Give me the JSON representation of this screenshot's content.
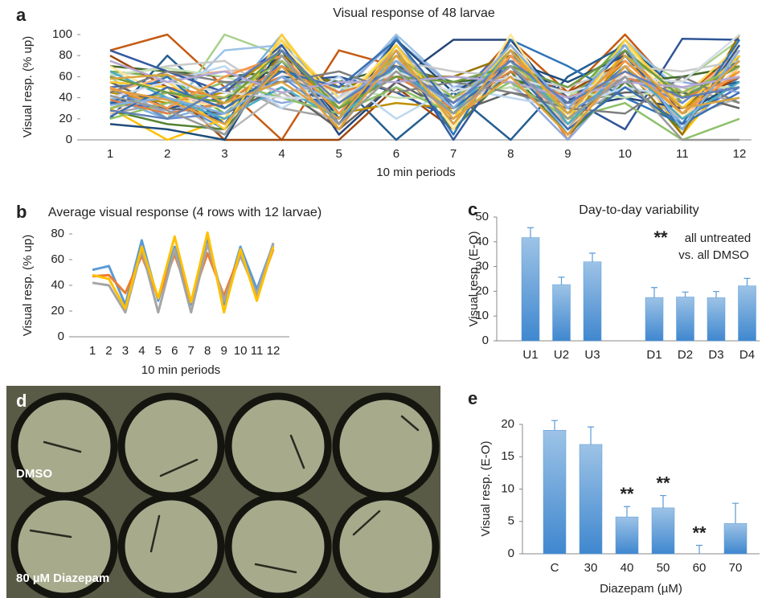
{
  "chart_data": [
    {
      "panel": "a",
      "type": "line",
      "title": "Visual response of 48 larvae",
      "x_label": "10 min periods",
      "y_label": "Visual resp. (% up)",
      "categories": [
        "1",
        "2",
        "3",
        "4",
        "5",
        "6",
        "7",
        "8",
        "9",
        "10",
        "11",
        "12"
      ],
      "ylim": [
        0,
        100
      ],
      "yticks": [
        0,
        20,
        40,
        60,
        80,
        100
      ],
      "series": [
        {
          "color": "#5b9bd5",
          "values": [
            45,
            40,
            10,
            95,
            20,
            98,
            15,
            85,
            25,
            90,
            10,
            60
          ]
        },
        {
          "color": "#c55a11",
          "values": [
            85,
            100,
            50,
            0,
            85,
            70,
            35,
            95,
            45,
            100,
            40,
            85
          ]
        },
        {
          "color": "#a9d18e",
          "values": [
            60,
            20,
            100,
            80,
            45,
            75,
            30,
            70,
            40,
            85,
            55,
            95
          ]
        },
        {
          "color": "#ffc000",
          "values": [
            30,
            0,
            20,
            95,
            10,
            90,
            25,
            80,
            15,
            85,
            5,
            70
          ]
        },
        {
          "color": "#4472c4",
          "values": [
            50,
            55,
            45,
            75,
            30,
            60,
            40,
            90,
            25,
            70,
            20,
            50
          ]
        },
        {
          "color": "#70ad47",
          "values": [
            65,
            60,
            25,
            70,
            20,
            80,
            35,
            75,
            35,
            95,
            35,
            80
          ]
        },
        {
          "color": "#255e91",
          "values": [
            20,
            80,
            30,
            60,
            55,
            0,
            45,
            0,
            60,
            90,
            45,
            55
          ]
        },
        {
          "color": "#9dc3e6",
          "values": [
            40,
            30,
            85,
            90,
            40,
            100,
            50,
            70,
            10,
            95,
            45,
            60
          ]
        },
        {
          "color": "#264478",
          "values": [
            35,
            45,
            15,
            85,
            5,
            55,
            95,
            95,
            30,
            40,
            30,
            75
          ]
        },
        {
          "color": "#ed7d31",
          "values": [
            55,
            50,
            40,
            60,
            35,
            75,
            20,
            85,
            0,
            85,
            25,
            65
          ]
        },
        {
          "color": "#a5a5a5",
          "values": [
            25,
            35,
            55,
            30,
            20,
            90,
            30,
            60,
            15,
            60,
            50,
            35
          ]
        },
        {
          "color": "#43682b",
          "values": [
            70,
            65,
            60,
            65,
            55,
            70,
            55,
            60,
            35,
            55,
            60,
            70
          ]
        },
        {
          "color": "#7cafdd",
          "values": [
            40,
            20,
            35,
            100,
            25,
            65,
            25,
            75,
            5,
            80,
            15,
            90
          ]
        },
        {
          "color": "#9e480e",
          "values": [
            80,
            50,
            0,
            0,
            0,
            50,
            10,
            65,
            45,
            75,
            30,
            60
          ]
        },
        {
          "color": "#b7b7b7",
          "values": [
            30,
            40,
            5,
            45,
            15,
            85,
            40,
            50,
            20,
            50,
            20,
            40
          ]
        },
        {
          "color": "#997300",
          "values": [
            60,
            45,
            30,
            80,
            50,
            60,
            60,
            80,
            10,
            70,
            5,
            100
          ]
        },
        {
          "color": "#2f5597",
          "values": [
            35,
            30,
            40,
            55,
            60,
            45,
            20,
            85,
            40,
            10,
            96,
            95
          ]
        },
        {
          "color": "#f4b183",
          "values": [
            45,
            60,
            65,
            70,
            30,
            65,
            35,
            90,
            25,
            65,
            35,
            85
          ]
        },
        {
          "color": "#8faadc",
          "values": [
            50,
            25,
            50,
            35,
            45,
            95,
            50,
            55,
            0,
            60,
            55,
            45
          ]
        },
        {
          "color": "#ffd966",
          "values": [
            75,
            55,
            20,
            95,
            40,
            80,
            15,
            70,
            30,
            90,
            40,
            90
          ]
        },
        {
          "color": "#548235",
          "values": [
            28,
            15,
            10,
            70,
            30,
            70,
            10,
            65,
            5,
            55,
            10,
            80
          ]
        },
        {
          "color": "#636363",
          "values": [
            55,
            30,
            25,
            50,
            10,
            55,
            25,
            45,
            35,
            45,
            45,
            30
          ]
        },
        {
          "color": "#1f4e79",
          "values": [
            15,
            10,
            0,
            90,
            20,
            95,
            45,
            75,
            55,
            80,
            25,
            55
          ]
        },
        {
          "color": "#c9c9c9",
          "values": [
            60,
            70,
            75,
            40,
            40,
            75,
            65,
            60,
            50,
            70,
            65,
            75
          ]
        },
        {
          "color": "#bf9000",
          "values": [
            45,
            35,
            45,
            85,
            25,
            35,
            30,
            85,
            20,
            75,
            30,
            65
          ]
        },
        {
          "color": "#2e75b6",
          "values": [
            35,
            60,
            15,
            75,
            15,
            85,
            5,
            95,
            70,
            40,
            15,
            95
          ]
        },
        {
          "color": "#c5e0b4",
          "values": [
            62,
            68,
            60,
            45,
            50,
            40,
            40,
            50,
            45,
            40,
            50,
            50
          ]
        },
        {
          "color": "#f8cbad",
          "values": [
            25,
            45,
            30,
            65,
            35,
            65,
            20,
            80,
            10,
            65,
            20,
            70
          ]
        },
        {
          "color": "#bdd7ee",
          "values": [
            40,
            55,
            70,
            30,
            60,
            20,
            50,
            40,
            30,
            50,
            40,
            60
          ]
        },
        {
          "color": "#ffe699",
          "values": [
            70,
            40,
            30,
            90,
            35,
            90,
            10,
            100,
            15,
            95,
            20,
            85
          ]
        },
        {
          "color": "#6a8fd0",
          "values": [
            50,
            20,
            25,
            60,
            20,
            75,
            35,
            70,
            25,
            60,
            35,
            75
          ]
        },
        {
          "color": "#8cc168",
          "values": [
            20,
            35,
            55,
            40,
            25,
            50,
            25,
            55,
            20,
            35,
            0,
            20
          ]
        },
        {
          "color": "#335aa1",
          "values": [
            85,
            65,
            45,
            90,
            15,
            85,
            0,
            80,
            35,
            85,
            10,
            90
          ]
        },
        {
          "color": "#dd8047",
          "values": [
            38,
            25,
            35,
            70,
            45,
            60,
            30,
            65,
            40,
            60,
            40,
            60
          ]
        },
        {
          "color": "#ffcd33",
          "values": [
            55,
            50,
            10,
            100,
            30,
            90,
            20,
            90,
            20,
            95,
            30,
            80
          ]
        },
        {
          "color": "#7f7f7f",
          "values": [
            45,
            65,
            55,
            55,
            65,
            45,
            55,
            45,
            30,
            25,
            60,
            35
          ]
        },
        {
          "color": "#9bbb59",
          "values": [
            30,
            45,
            40,
            75,
            30,
            80,
            40,
            75,
            25,
            80,
            45,
            70
          ]
        },
        {
          "color": "#4bacc6",
          "values": [
            65,
            40,
            20,
            50,
            20,
            70,
            25,
            85,
            15,
            70,
            20,
            55
          ]
        },
        {
          "color": "#d6dce5",
          "values": [
            40,
            55,
            45,
            40,
            40,
            65,
            45,
            60,
            45,
            60,
            55,
            100
          ]
        },
        {
          "color": "#f79646",
          "values": [
            50,
            30,
            60,
            80,
            25,
            85,
            15,
            80,
            30,
            75,
            25,
            65
          ]
        },
        {
          "color": "#3a6fb0",
          "values": [
            22,
            50,
            30,
            65,
            50,
            95,
            30,
            70,
            10,
            50,
            15,
            45
          ]
        },
        {
          "color": "#6f9c43",
          "values": [
            60,
            45,
            35,
            85,
            30,
            60,
            55,
            70,
            50,
            85,
            40,
            70
          ]
        },
        {
          "color": "#84b0e0",
          "values": [
            33,
            40,
            25,
            60,
            35,
            75,
            30,
            90,
            30,
            90,
            10,
            85
          ]
        },
        {
          "color": "#b4a7d6",
          "values": [
            75,
            55,
            65,
            45,
            55,
            55,
            60,
            55,
            40,
            55,
            50,
            60
          ]
        },
        {
          "color": "#e2a03f",
          "values": [
            48,
            38,
            15,
            70,
            10,
            80,
            20,
            60,
            5,
            70,
            25,
            75
          ]
        },
        {
          "color": "#5e7fb8",
          "values": [
            28,
            20,
            50,
            85,
            35,
            70,
            35,
            75,
            35,
            65,
            40,
            50
          ]
        },
        {
          "color": "#d9a441",
          "values": [
            58,
            62,
            35,
            55,
            20,
            85,
            15,
            85,
            25,
            80,
            30,
            40
          ]
        },
        {
          "color": "#999999",
          "values": [
            42,
            28,
            5,
            80,
            15,
            65,
            25,
            70,
            20,
            60,
            0,
            0
          ]
        }
      ]
    },
    {
      "panel": "b",
      "type": "line",
      "title": "Average visual response (4 rows with 12 larvae)",
      "x_label": "10 min periods",
      "y_label": "Visual resp. (% up)",
      "categories": [
        "1",
        "2",
        "3",
        "4",
        "5",
        "6",
        "7",
        "8",
        "9",
        "10",
        "11",
        "12"
      ],
      "ylim": [
        0,
        80
      ],
      "yticks": [
        0,
        20,
        40,
        60,
        80
      ],
      "series": [
        {
          "color": "#5b9bd5",
          "values": [
            52,
            55,
            25,
            75,
            28,
            70,
            25,
            77,
            25,
            70,
            37,
            72
          ]
        },
        {
          "color": "#ed7d31",
          "values": [
            47,
            48,
            34,
            63,
            30,
            64,
            27,
            65,
            32,
            65,
            32,
            68
          ]
        },
        {
          "color": "#a5a5a5",
          "values": [
            42,
            40,
            19,
            68,
            19,
            68,
            19,
            72,
            28,
            63,
            33,
            73
          ]
        },
        {
          "color": "#ffc000",
          "values": [
            48,
            45,
            22,
            70,
            30,
            78,
            27,
            81,
            19,
            68,
            28,
            70
          ]
        }
      ]
    },
    {
      "panel": "c",
      "type": "bar",
      "title": "Day-to-day variability",
      "y_label": "Visual resp. (E-O)",
      "categories": [
        "U1",
        "U2",
        "U3",
        "D1",
        "D2",
        "D3",
        "D4"
      ],
      "values": [
        41.7,
        22.7,
        31.9,
        17.5,
        17.7,
        17.4,
        22.2
      ],
      "error": [
        4,
        3,
        3.5,
        4,
        2,
        2.5,
        3
      ],
      "color": "#5b9bd5",
      "ylim": [
        0,
        50
      ],
      "yticks": [
        0,
        10,
        20,
        30,
        40,
        50
      ],
      "annotations": [
        {
          "text": "**"
        },
        {
          "text": "all untreated"
        },
        {
          "text": "vs. all DMSO"
        }
      ]
    },
    {
      "panel": "e",
      "type": "bar",
      "x_label": "Diazepam (µM)",
      "y_label": "Visual resp. (E-O)",
      "categories": [
        "C",
        "30",
        "40",
        "50",
        "60",
        "70"
      ],
      "values": [
        19.1,
        16.9,
        5.7,
        7.1,
        0,
        4.7
      ],
      "error": [
        1.5,
        2.7,
        1.6,
        1.9,
        1.3,
        3.1
      ],
      "color": "#5b9bd5",
      "ylim": [
        0,
        20
      ],
      "yticks": [
        0,
        5,
        10,
        15,
        20
      ],
      "annotations": [
        {
          "text": "**",
          "at": "40"
        },
        {
          "text": "**",
          "at": "50"
        },
        {
          "text": "**",
          "at": "60"
        }
      ]
    }
  ],
  "photo_panel": {
    "panel": "d",
    "labels": [
      "DMSO",
      "80 µM Diazepam"
    ]
  }
}
